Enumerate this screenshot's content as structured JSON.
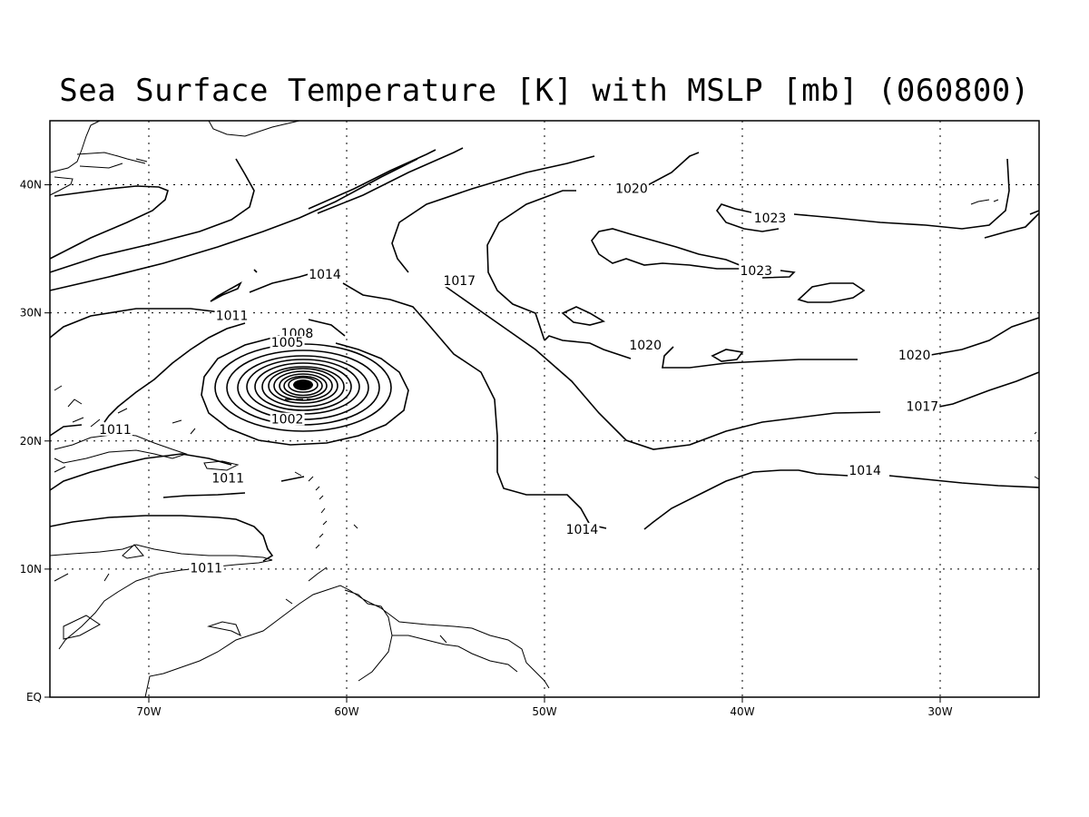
{
  "title": "Sea Surface Temperature [K] with MSLP [mb] (060800)",
  "axes": {
    "lon_ticks": [
      "70W",
      "60W",
      "50W",
      "40W",
      "30W"
    ],
    "lat_ticks": [
      "EQ",
      "10N",
      "20N",
      "30N",
      "40N"
    ],
    "lon_range": [
      -75,
      -25
    ],
    "lat_range": [
      0,
      45
    ],
    "grid": "dotted"
  },
  "contour_labels": [
    {
      "text": "1020",
      "lon": -45.6,
      "lat": 39.5
    },
    {
      "text": "1023",
      "lon": -38.6,
      "lat": 37.2
    },
    {
      "text": "1023",
      "lon": -39.3,
      "lat": 33.1
    },
    {
      "text": "1014",
      "lon": -61.1,
      "lat": 32.8
    },
    {
      "text": "1017",
      "lon": -54.3,
      "lat": 32.3
    },
    {
      "text": "1011",
      "lon": -65.8,
      "lat": 29.6
    },
    {
      "text": "1008",
      "lon": -62.5,
      "lat": 28.2
    },
    {
      "text": "1005",
      "lon": -63.0,
      "lat": 27.5
    },
    {
      "text": "1020",
      "lon": -44.9,
      "lat": 27.3
    },
    {
      "text": "1020",
      "lon": -31.3,
      "lat": 26.5
    },
    {
      "text": "1002",
      "lon": -63.0,
      "lat": 21.5
    },
    {
      "text": "1017",
      "lon": -30.9,
      "lat": 22.5
    },
    {
      "text": "1011",
      "lon": -71.7,
      "lat": 20.7
    },
    {
      "text": "1014",
      "lon": -33.8,
      "lat": 17.5
    },
    {
      "text": "1011",
      "lon": -66.0,
      "lat": 16.9
    },
    {
      "text": "1014",
      "lon": -48.1,
      "lat": 12.9
    },
    {
      "text": "1011",
      "lon": -67.1,
      "lat": 9.9
    }
  ]
}
